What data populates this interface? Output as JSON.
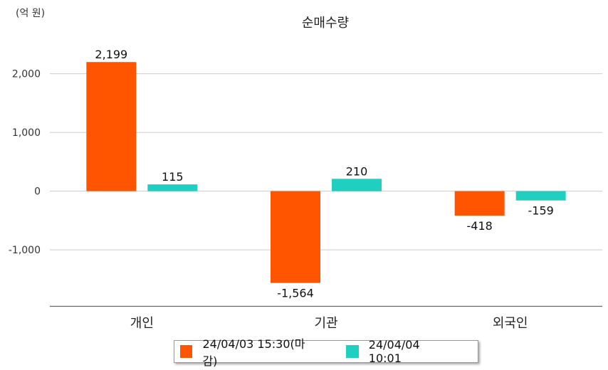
{
  "chart_data": {
    "type": "bar",
    "title": "순매수량",
    "unit": "(억 원)",
    "categories": [
      "개인",
      "기관",
      "외국인"
    ],
    "series": [
      {
        "name": "24/04/03 15:30(마감)",
        "color": "#ff5500",
        "values": [
          2199,
          -1564,
          -418
        ],
        "labels": [
          "2,199",
          "-1,564",
          "-418"
        ]
      },
      {
        "name": "24/04/04 10:01",
        "color": "#1fcfbf",
        "values": [
          115,
          210,
          -159
        ],
        "labels": [
          "115",
          "210",
          "-159"
        ]
      }
    ],
    "y_ticks": [
      2000,
      1000,
      0,
      -1000
    ],
    "y_tick_labels": [
      "2,000",
      "1,000",
      "0",
      "-1,000"
    ],
    "ylim": [
      -1950,
      2450
    ],
    "grid": true,
    "legend_position": "bottom"
  }
}
